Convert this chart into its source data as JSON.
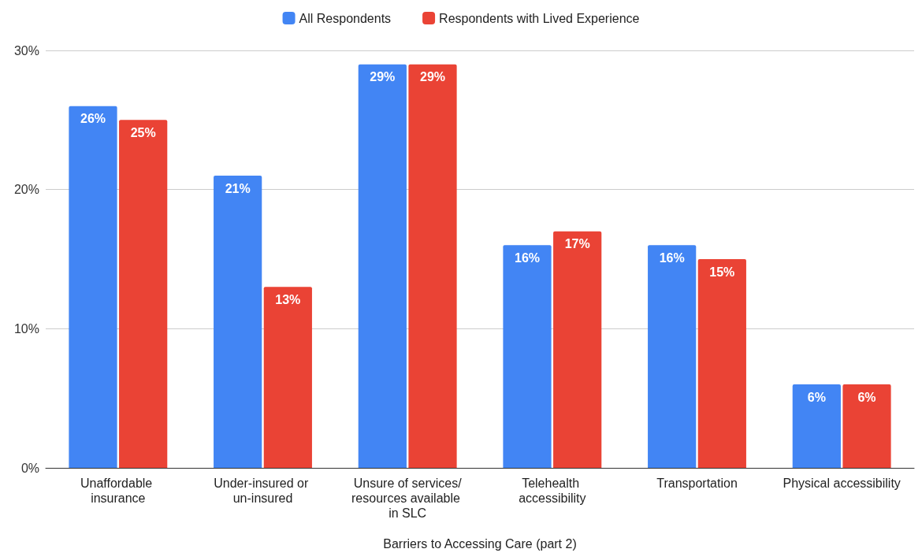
{
  "chart_data": {
    "type": "bar",
    "xlabel": "Barriers to Accessing Care (part 2)",
    "categories": [
      "Unaffordable insurance",
      "Under-insured or un-insured",
      "Unsure of services/resources available in SLC",
      "Telehealth accessibility",
      "Transportation",
      "Physical accessibility"
    ],
    "series": [
      {
        "name": "All Respondents",
        "color": "#4285f4",
        "values": [
          26,
          21,
          29,
          16,
          16,
          6
        ],
        "value_labels": [
          "26%",
          "21%",
          "29%",
          "16%",
          "16%",
          "6%"
        ]
      },
      {
        "name": "Respondents with Lived Experience",
        "color": "#ea4335",
        "values": [
          25,
          13,
          29,
          17,
          15,
          6
        ],
        "value_labels": [
          "25%",
          "13%",
          "29%",
          "17%",
          "15%",
          "6%"
        ]
      }
    ],
    "ylim": [
      0,
      30
    ],
    "yticks": [
      {
        "value": 0,
        "label": "0%"
      },
      {
        "value": 10,
        "label": "10%"
      },
      {
        "value": 20,
        "label": "20%"
      },
      {
        "value": 30,
        "label": "30%"
      }
    ],
    "grid": "y",
    "legend": "top"
  }
}
